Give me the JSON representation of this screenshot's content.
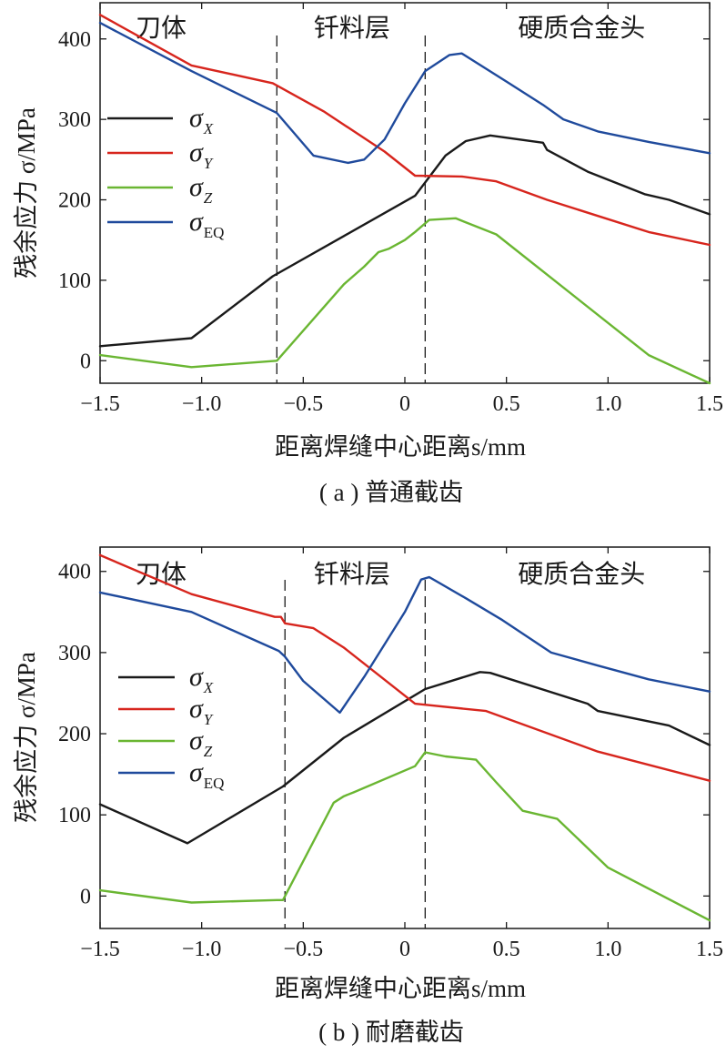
{
  "chart_data": [
    {
      "type": "line",
      "caption": "( a ) 普通截齿",
      "xlabel": "距离焊缝中心距离s/mm",
      "ylabel": "残余应力 σ/MPa",
      "xlim": [
        -1.5,
        1.5
      ],
      "ylim": [
        -28,
        445
      ],
      "xticks": [
        "−1.5",
        "−1.0",
        "−0.5",
        "0",
        "0.5",
        "1.0",
        "1.5"
      ],
      "xtick_values": [
        -1.5,
        -1.0,
        -0.5,
        0,
        0.5,
        1.0,
        1.5
      ],
      "yticks": [
        "0",
        "100",
        "200",
        "300",
        "400"
      ],
      "ytick_values": [
        0,
        100,
        200,
        300,
        400
      ],
      "regions": [
        {
          "label": "刀体",
          "x": -1.2
        },
        {
          "label": "钎料层",
          "x": -0.26
        },
        {
          "label": "硬质合金头",
          "x": 0.87
        }
      ],
      "boundaries": [
        -0.63,
        0.1
      ],
      "legend_position": "left-center",
      "series": [
        {
          "name": "σX",
          "legend_base": "σ",
          "legend_sub": "X",
          "color": "#1a1a1a",
          "x": [
            -1.5,
            -1.05,
            -0.65,
            -0.3,
            0.05,
            0.2,
            0.3,
            0.42,
            0.68,
            0.7,
            0.9,
            1.18,
            1.3,
            1.5
          ],
          "y": [
            18,
            28,
            105,
            155,
            205,
            255,
            273,
            280,
            271,
            262,
            235,
            207,
            200,
            182
          ]
        },
        {
          "name": "σY",
          "legend_base": "σ",
          "legend_sub": "Y",
          "color": "#d7251d",
          "x": [
            -1.5,
            -1.05,
            -0.65,
            -0.4,
            -0.1,
            0.05,
            0.28,
            0.45,
            0.7,
            1.2,
            1.5
          ],
          "y": [
            430,
            367,
            345,
            310,
            260,
            230,
            229,
            223,
            200,
            160,
            144
          ]
        },
        {
          "name": "σZ",
          "legend_base": "σ",
          "legend_sub": "Z",
          "color": "#6ab632",
          "x": [
            -1.5,
            -1.05,
            -0.63,
            -0.3,
            -0.2,
            -0.13,
            -0.08,
            0.0,
            0.05,
            0.12,
            0.25,
            0.45,
            1.2,
            1.5
          ],
          "y": [
            7,
            -8,
            0,
            95,
            117,
            135,
            139,
            150,
            160,
            175,
            177,
            157,
            7,
            -28
          ]
        },
        {
          "name": "σEQ",
          "legend_base": "σ",
          "legend_sub": "EQ",
          "color": "#1f4a9c",
          "x": [
            -1.5,
            -1.05,
            -0.63,
            -0.45,
            -0.28,
            -0.2,
            -0.1,
            0.0,
            0.1,
            0.22,
            0.28,
            0.5,
            0.68,
            0.78,
            0.95,
            1.2,
            1.5
          ],
          "y": [
            420,
            360,
            308,
            255,
            246,
            250,
            275,
            320,
            360,
            380,
            382,
            347,
            318,
            300,
            285,
            272,
            258
          ]
        }
      ]
    },
    {
      "type": "line",
      "caption": "( b ) 耐磨截齿",
      "xlabel": "距离焊缝中心距离s/mm",
      "ylabel": "残余应力 σ/MPa",
      "xlim": [
        -1.5,
        1.5
      ],
      "ylim": [
        -40,
        430
      ],
      "xticks": [
        "−1.5",
        "−1.0",
        "−0.5",
        "0",
        "0.5",
        "1.0",
        "1.5"
      ],
      "xtick_values": [
        -1.5,
        -1.0,
        -0.5,
        0,
        0.5,
        1.0,
        1.5
      ],
      "yticks": [
        "0",
        "100",
        "200",
        "300",
        "400"
      ],
      "ytick_values": [
        0,
        100,
        200,
        300,
        400
      ],
      "regions": [
        {
          "label": "刀体",
          "x": -1.2
        },
        {
          "label": "钎料层",
          "x": -0.26
        },
        {
          "label": "硬质合金头",
          "x": 0.87
        }
      ],
      "boundaries": [
        -0.59,
        0.1
      ],
      "legend_position": "left-center",
      "series": [
        {
          "name": "σX",
          "legend_base": "σ",
          "legend_sub": "X",
          "color": "#1a1a1a",
          "x": [
            -1.5,
            -1.07,
            -0.6,
            -0.3,
            0.1,
            0.37,
            0.42,
            0.9,
            0.95,
            1.3,
            1.5
          ],
          "y": [
            113,
            65,
            135,
            195,
            255,
            276,
            275,
            237,
            228,
            210,
            186
          ]
        },
        {
          "name": "σY",
          "legend_base": "σ",
          "legend_sub": "Y",
          "color": "#d7251d",
          "x": [
            -1.5,
            -1.05,
            -0.64,
            -0.61,
            -0.59,
            -0.45,
            -0.3,
            0.05,
            0.4,
            0.95,
            1.5
          ],
          "y": [
            420,
            372,
            344,
            344,
            336,
            330,
            306,
            237,
            228,
            178,
            142
          ]
        },
        {
          "name": "σZ",
          "legend_base": "σ",
          "legend_sub": "Z",
          "color": "#6ab632",
          "x": [
            -1.5,
            -1.05,
            -0.63,
            -0.6,
            -0.35,
            -0.3,
            -0.25,
            0.05,
            0.1,
            0.2,
            0.35,
            0.45,
            0.58,
            0.75,
            1.0,
            1.5
          ],
          "y": [
            7,
            -8,
            -5,
            -5,
            115,
            123,
            128,
            160,
            177,
            172,
            168,
            140,
            105,
            95,
            35,
            -30
          ]
        },
        {
          "name": "σEQ",
          "legend_base": "σ",
          "legend_sub": "EQ",
          "color": "#1f4a9c",
          "x": [
            -1.5,
            -1.05,
            -0.62,
            -0.59,
            -0.5,
            -0.32,
            -0.2,
            0.0,
            0.08,
            0.12,
            0.3,
            0.48,
            0.72,
            0.95,
            1.2,
            1.5
          ],
          "y": [
            374,
            350,
            302,
            295,
            265,
            226,
            270,
            350,
            390,
            393,
            367,
            340,
            300,
            284,
            267,
            252
          ]
        }
      ]
    }
  ]
}
